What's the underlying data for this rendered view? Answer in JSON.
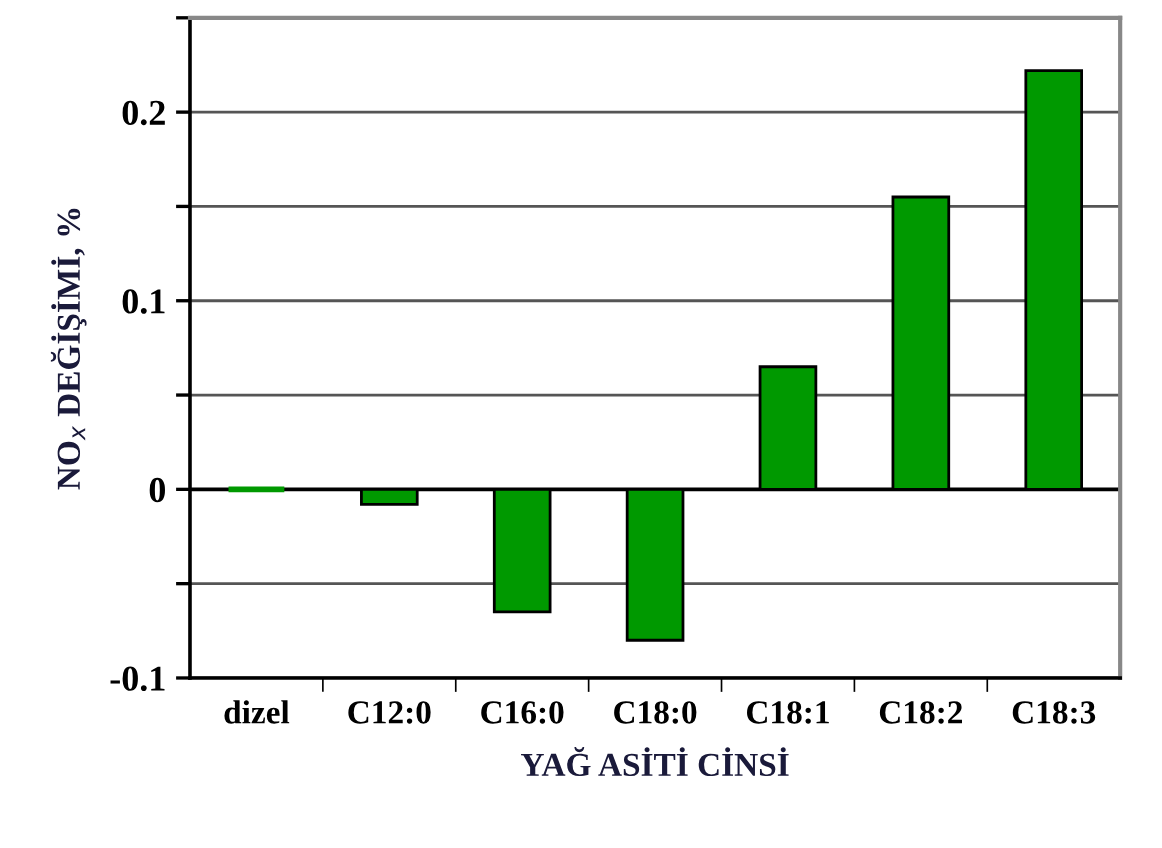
{
  "chart_data": {
    "type": "bar",
    "xlabel": "YAĞ ASİTİ CİNSİ",
    "ylabel": "NO$_{x}$ DEĞİŞİMİ, %",
    "categories": [
      "dizel",
      "C12:0",
      "C16:0",
      "C18:0",
      "C18:1",
      "C18:2",
      "C18:3"
    ],
    "values": [
      0,
      -0.008,
      -0.065,
      -0.08,
      0.065,
      0.155,
      0.222
    ],
    "color": "#009900",
    "ylim": [
      -0.1,
      0.25
    ],
    "yticks": [
      -0.1,
      {
        "value": -0.05,
        "label": null
      },
      0,
      {
        "value": 0.05,
        "label": null
      },
      0.1,
      {
        "value": 0.15,
        "label": null
      },
      0.2,
      {
        "value": 0.25,
        "label": null
      }
    ],
    "grid": "y",
    "ref_lines": [
      {
        "axis": "y",
        "value": 0,
        "color": "#000000"
      }
    ]
  }
}
